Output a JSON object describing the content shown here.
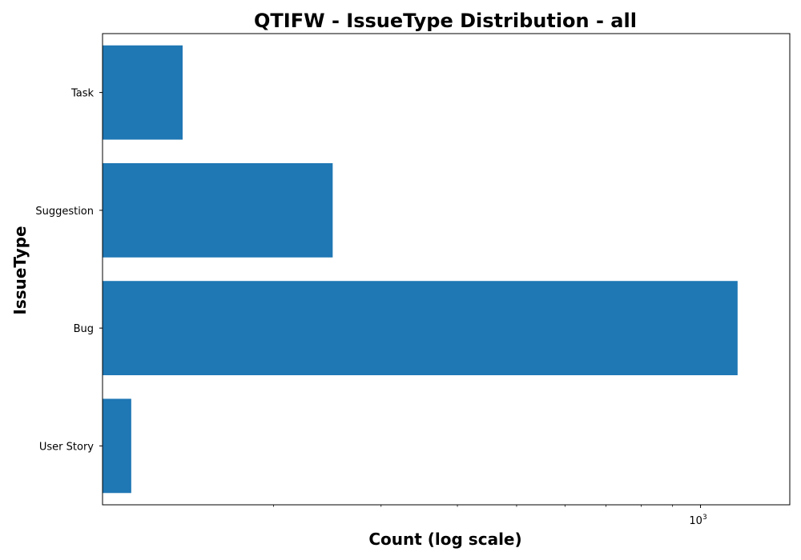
{
  "chart_data": {
    "type": "bar",
    "orientation": "horizontal",
    "title": "QTIFW - IssueType Distribution - all",
    "xlabel": "Count (log scale)",
    "ylabel": "IssueType",
    "x_scale": "log",
    "xlim": [
      105,
      1400
    ],
    "categories": [
      "User Story",
      "Bug",
      "Suggestion",
      "Task"
    ],
    "values": [
      117,
      1150,
      250,
      142
    ],
    "bar_color": "#1f77b4",
    "x_major_ticks": [
      {
        "value": 1000,
        "label_base": "10",
        "label_exp": "3"
      }
    ],
    "x_minor_ticks": [
      200,
      300,
      400,
      500,
      600,
      700,
      800,
      900
    ],
    "grid": false,
    "legend": "none"
  }
}
